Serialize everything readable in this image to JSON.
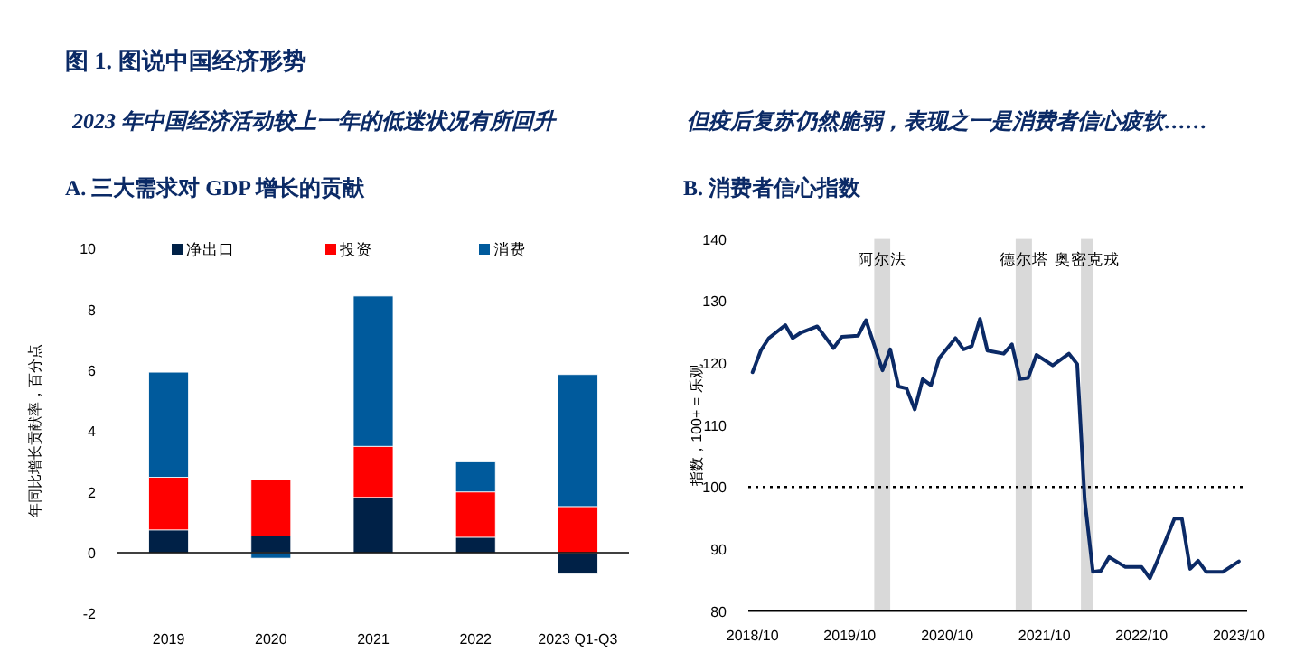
{
  "chart_data": [
    {
      "type": "bar",
      "title": "A. 三大需求对 GDP 增长的贡献",
      "subtitle": "2023 年中国经济活动较上一年的低迷状况有所回升",
      "annotations": [
        "图 1. 图说中国经济形势"
      ],
      "ylabel": "年同比增长贡献率，百分点",
      "stacked": true,
      "legend": "top",
      "categories": [
        "2019",
        "2020",
        "2021",
        "2022",
        "2023 Q1-Q3"
      ],
      "series": [
        {
          "name": "净出口",
          "color": "#002147",
          "values": [
            0.75,
            0.55,
            1.82,
            0.51,
            -0.69
          ]
        },
        {
          "name": "投资",
          "color": "#ff0000",
          "values": [
            1.73,
            1.85,
            1.68,
            1.49,
            1.52
          ]
        },
        {
          "name": "消费",
          "color": "#005a9c",
          "values": [
            3.46,
            -0.18,
            4.94,
            0.99,
            4.34
          ]
        }
      ],
      "ylim": [
        -2,
        10
      ],
      "yticks": [
        -2,
        0,
        2,
        4,
        6,
        8,
        10
      ]
    },
    {
      "type": "line",
      "title": "B. 消费者信心指数",
      "subtitle": "但疫后复苏仍然脆弱，表现之一是消费者信心疲软……",
      "ylabel": "指数，100+ = 乐观",
      "x": [
        "2018-10",
        "2018-11",
        "2018-12",
        "2019-02",
        "2019-03",
        "2019-04",
        "2019-06",
        "2019-08",
        "2019-09",
        "2019-11",
        "2019-12",
        "2020-02",
        "2020-03",
        "2020-04",
        "2020-05",
        "2020-06",
        "2020-07",
        "2020-08",
        "2020-09",
        "2020-11",
        "2020-12",
        "2021-01",
        "2021-02",
        "2021-03",
        "2021-05",
        "2021-06",
        "2021-07",
        "2021-08",
        "2021-09",
        "2021-11",
        "2022-01",
        "2022-02",
        "2022-03",
        "2022-04",
        "2022-05",
        "2022-06",
        "2022-08",
        "2022-10",
        "2022-11",
        "2022-12",
        "2023-02",
        "2023-03",
        "2023-04",
        "2023-05",
        "2023-06",
        "2023-08",
        "2023-10"
      ],
      "series": [
        {
          "color": "#0b2a66",
          "values": [
            118.5,
            122,
            124,
            126.1,
            124,
            124.9,
            125.9,
            122.4,
            124.2,
            124.4,
            126.9,
            118.8,
            122.2,
            116.2,
            115.9,
            112.5,
            117.4,
            116.4,
            120.8,
            124,
            122.2,
            122.7,
            127.1,
            122,
            121.5,
            123,
            117.4,
            117.6,
            121.3,
            119.6,
            121.5,
            119.8,
            98,
            86.3,
            86.5,
            88.7,
            87.1,
            87.1,
            85.3,
            88.3,
            94.9,
            94.9,
            86.8,
            88.1,
            86.3,
            86.3,
            88
          ]
        }
      ],
      "xlim": [
        "2018-09-15",
        "2023-11-01"
      ],
      "xticks": [
        {
          "value": "2018-10",
          "label": "2018/10"
        },
        {
          "value": "2019-10",
          "label": "2019/10"
        },
        {
          "value": "2020-10",
          "label": "2020/10"
        },
        {
          "value": "2021-10",
          "label": "2021/10"
        },
        {
          "value": "2022-10",
          "label": "2022/10"
        },
        {
          "value": "2023-10",
          "label": "2023/10"
        }
      ],
      "ylim": [
        80,
        140
      ],
      "yticks": [
        80,
        90,
        100,
        110,
        120,
        130,
        140
      ],
      "ref_lines": [
        {
          "axis": "y",
          "value": 100,
          "line_style": "dotted",
          "color": "#000000"
        }
      ],
      "bands": [
        {
          "axis": "x",
          "from": "2020-01",
          "to": "2020-03",
          "label": "阿尔法",
          "color": "#d9d9d9"
        },
        {
          "axis": "x",
          "from": "2021-06-15",
          "to": "2021-08-15",
          "label": "德尔塔",
          "color": "#d9d9d9"
        },
        {
          "axis": "x",
          "from": "2022-02-15",
          "to": "2022-04-01",
          "label": "奥密克戎",
          "color": "#d9d9d9"
        }
      ]
    }
  ]
}
